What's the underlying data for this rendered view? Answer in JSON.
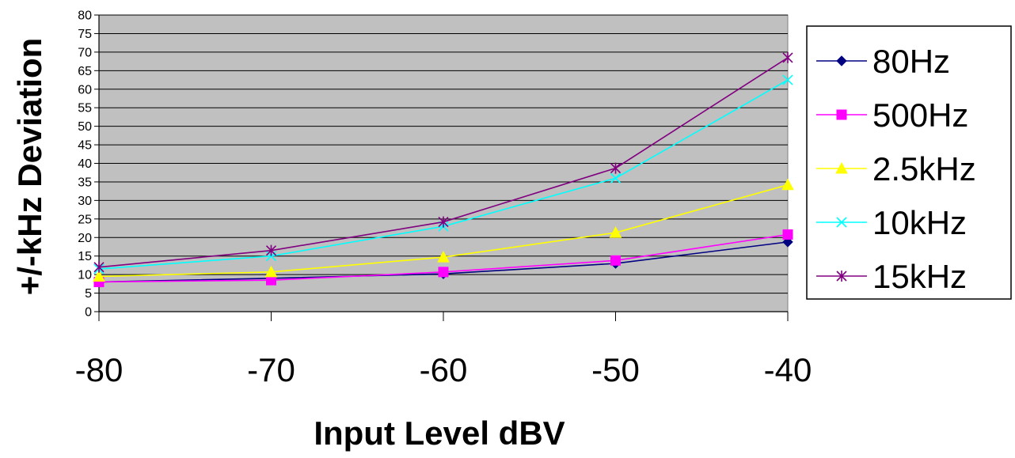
{
  "chart_data": {
    "type": "line",
    "title": "",
    "xlabel": "Input Level dBV",
    "ylabel": "+/-kHz Deviation",
    "x": [
      -80,
      -70,
      -60,
      -50,
      -40
    ],
    "xticks": [
      "-80",
      "-70",
      "-60",
      "-50",
      "-40"
    ],
    "yticks": [
      "0",
      "5",
      "10",
      "15",
      "20",
      "25",
      "30",
      "35",
      "40",
      "45",
      "50",
      "55",
      "60",
      "65",
      "70",
      "75",
      "80"
    ],
    "ylim": [
      0,
      80
    ],
    "grid": true,
    "plot_background": "#c0c0c0",
    "legend_position": "right",
    "series": [
      {
        "name": "80Hz",
        "color": "#000080",
        "marker": "diamond",
        "values": [
          8.0,
          9.0,
          10.2,
          13.0,
          18.8
        ]
      },
      {
        "name": "500Hz",
        "color": "#ff00ff",
        "marker": "square",
        "values": [
          8.0,
          8.5,
          10.7,
          13.8,
          20.8
        ]
      },
      {
        "name": "2.5kHz",
        "color": "#ffff00",
        "marker": "triangle",
        "values": [
          9.5,
          10.7,
          14.7,
          21.3,
          34.2
        ]
      },
      {
        "name": "10kHz",
        "color": "#00ffff",
        "marker": "x",
        "values": [
          11.5,
          15.0,
          23.0,
          36.0,
          62.5
        ]
      },
      {
        "name": "15kHz",
        "color": "#800080",
        "marker": "star",
        "values": [
          12.0,
          16.5,
          24.2,
          38.7,
          68.5
        ]
      }
    ]
  }
}
